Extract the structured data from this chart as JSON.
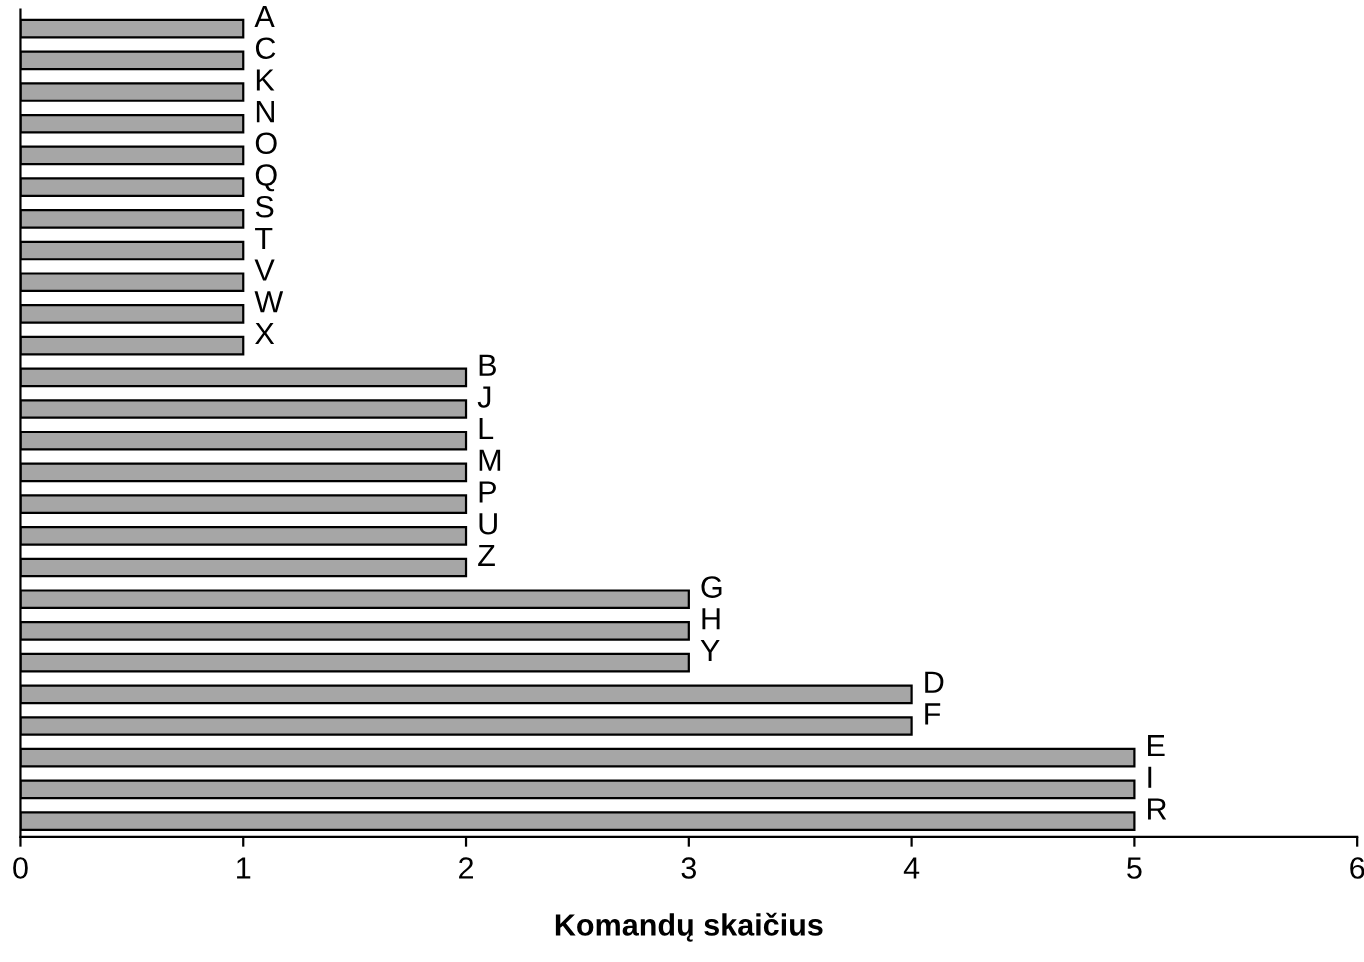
{
  "chart_data": {
    "type": "bar",
    "orientation": "horizontal",
    "xlabel": "Komandų skaičius",
    "categories": [
      "A",
      "C",
      "K",
      "N",
      "O",
      "Q",
      "S",
      "T",
      "V",
      "W",
      "X",
      "B",
      "J",
      "L",
      "M",
      "P",
      "U",
      "Z",
      "G",
      "H",
      "Y",
      "D",
      "F",
      "E",
      "I",
      "R"
    ],
    "values": [
      1,
      1,
      1,
      1,
      1,
      1,
      1,
      1,
      1,
      1,
      1,
      2,
      2,
      2,
      2,
      2,
      2,
      2,
      3,
      3,
      3,
      4,
      4,
      5,
      5,
      5
    ],
    "color": "#a6a6a6",
    "xlim": [
      0,
      6
    ],
    "xticks": [
      0,
      1,
      2,
      3,
      4,
      5,
      6
    ],
    "grid": false
  }
}
